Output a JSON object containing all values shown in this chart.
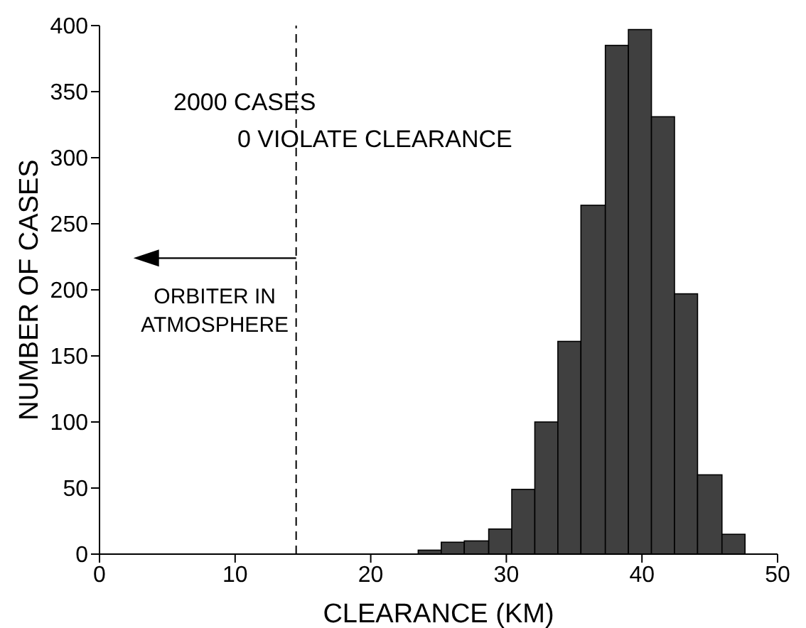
{
  "chart_data": {
    "type": "histogram",
    "xlabel": "CLEARANCE (KM)",
    "ylabel": "NUMBER OF CASES",
    "color": "#404040",
    "bins": [
      23.5,
      25.2,
      26.9,
      28.7,
      30.4,
      32.1,
      33.8,
      35.5,
      37.3,
      39.0,
      40.7,
      42.4,
      44.1,
      45.9,
      47.6
    ],
    "values": [
      3,
      9,
      10,
      19,
      49,
      100,
      161,
      264,
      385,
      397,
      331,
      197,
      60,
      15
    ],
    "xlim": [
      0,
      50
    ],
    "xticks": [
      0,
      10,
      20,
      30,
      40,
      50
    ],
    "ylim": [
      0,
      400
    ],
    "yticks": [
      0,
      50,
      100,
      150,
      200,
      250,
      300,
      350,
      400
    ],
    "grid": false,
    "ref_lines": [
      {
        "axis": "x",
        "value": 14.5,
        "line_style": "dashed",
        "color": "#000000",
        "label": "ORBITER IN\nATMOSPHERE"
      }
    ],
    "annotations": [
      "2000  CASES",
      "0  VIOLATE CLEARANCE"
    ]
  }
}
